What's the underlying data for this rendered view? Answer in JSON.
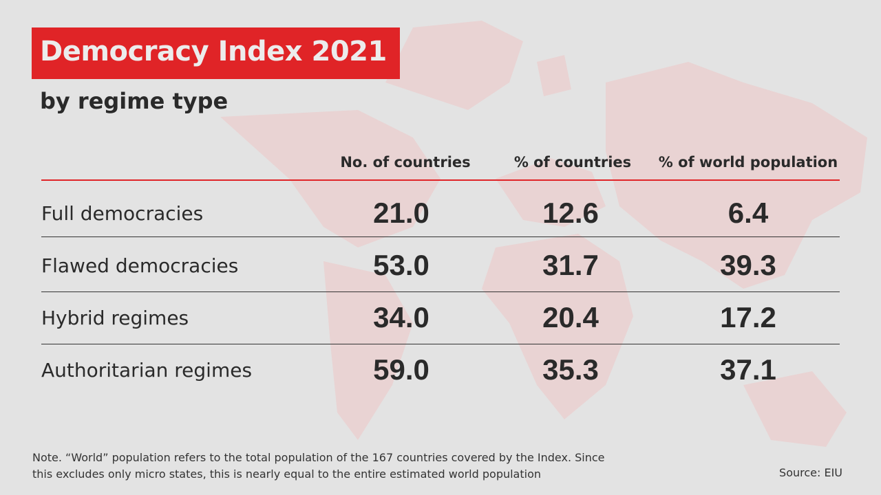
{
  "title": "Democracy Index 2021",
  "subtitle": "by regime type",
  "colors": {
    "accent": "#e02427",
    "background": "#e3e3e3",
    "map": "#e9cfcf"
  },
  "chart_data": {
    "type": "table",
    "columns": [
      "No. of countries",
      "% of countries",
      "% of world population"
    ],
    "rows": [
      {
        "label": "Full democracies",
        "values": [
          "21.0",
          "12.6",
          "6.4"
        ]
      },
      {
        "label": "Flawed democracies",
        "values": [
          "53.0",
          "31.7",
          "39.3"
        ]
      },
      {
        "label": "Hybrid regimes",
        "values": [
          "34.0",
          "20.4",
          "17.2"
        ]
      },
      {
        "label": "Authoritarian regimes",
        "values": [
          "59.0",
          "35.3",
          "37.1"
        ]
      }
    ]
  },
  "note": [
    "Note. “World” population refers to the total population of the 167 countries covered by the Index. Since",
    "this excludes only micro states, this is nearly equal to the entire estimated world population"
  ],
  "source": "Source: EIU"
}
